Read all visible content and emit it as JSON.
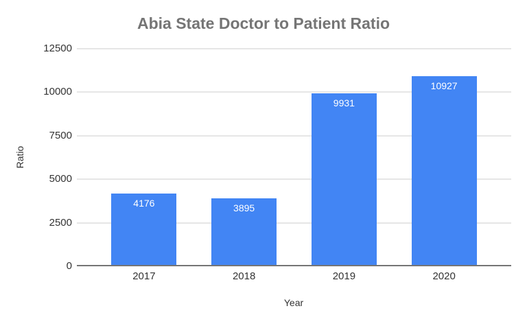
{
  "chart_data": {
    "type": "bar",
    "title": "Abia State Doctor to Patient Ratio",
    "xlabel": "Year",
    "ylabel": "Ratio",
    "categories": [
      "2017",
      "2018",
      "2019",
      "2020"
    ],
    "values": [
      4176,
      3895,
      9931,
      10927
    ],
    "yticks": [
      0,
      2500,
      5000,
      7500,
      10000,
      12500
    ],
    "ylim": [
      0,
      12500
    ],
    "grid": true,
    "legend_position": "none",
    "data_labels": "inside-top",
    "colors": {
      "bar": "#4285f4",
      "value_label": "#ffffff",
      "title": "#757575",
      "axis_text": "#333333",
      "axis_title": "#333333",
      "gridline": "#e6e6e6",
      "baseline": "#757575",
      "background": "#ffffff"
    }
  }
}
